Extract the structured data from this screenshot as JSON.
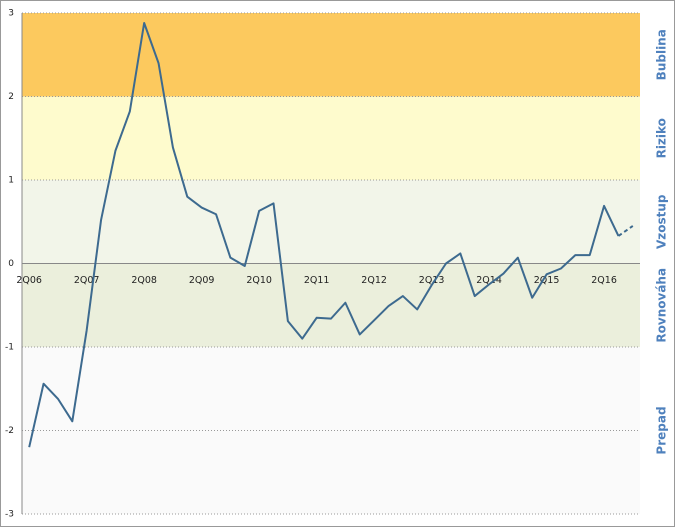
{
  "chart_data": {
    "type": "line",
    "categories": [
      "2Q06",
      null,
      null,
      null,
      "2Q07",
      null,
      null,
      null,
      "2Q08",
      null,
      null,
      null,
      "2Q09",
      null,
      null,
      null,
      "2Q10",
      null,
      null,
      null,
      "2Q11",
      null,
      null,
      null,
      "2Q12",
      null,
      null,
      null,
      "2Q13",
      null,
      null,
      null,
      "2Q14",
      null,
      null,
      null,
      "2Q15",
      null,
      null,
      null,
      "2Q16",
      null,
      null
    ],
    "series": [
      {
        "color": "#3d6a8f",
        "dashed": false,
        "values": [
          -2.2,
          -1.44,
          -1.62,
          -1.89,
          -0.8,
          0.52,
          1.35,
          1.82,
          2.88,
          2.4,
          1.39,
          0.8,
          0.67,
          0.59,
          0.07,
          -0.03,
          0.63,
          0.72,
          -0.69,
          -0.9,
          -0.65,
          -0.66,
          -0.47,
          -0.85,
          -0.68,
          -0.51,
          -0.39,
          -0.55,
          -0.26,
          0.0,
          0.12,
          -0.39,
          -0.25,
          -0.12,
          0.07,
          -0.41,
          -0.13,
          -0.06,
          0.1,
          0.1,
          0.69,
          0.33,
          null
        ]
      },
      {
        "color": "#3d6a8f",
        "dashed": true,
        "values": [
          null,
          null,
          null,
          null,
          null,
          null,
          null,
          null,
          null,
          null,
          null,
          null,
          null,
          null,
          null,
          null,
          null,
          null,
          null,
          null,
          null,
          null,
          null,
          null,
          null,
          null,
          null,
          null,
          null,
          null,
          null,
          null,
          null,
          null,
          null,
          null,
          null,
          null,
          null,
          null,
          null,
          0.33,
          0.45
        ]
      }
    ],
    "bands": [
      {
        "label": "Bublina",
        "from": 2,
        "to": 3,
        "color": "#fcc95e"
      },
      {
        "label": "Riziko",
        "from": 1,
        "to": 2,
        "color": "#fefbcd"
      },
      {
        "label": "Vzostup",
        "from": 0,
        "to": 1,
        "color": "#f2f5e9"
      },
      {
        "label": "Rovnováha",
        "from": -1,
        "to": 0,
        "color": "#ebefdc"
      },
      {
        "label": "Prepad",
        "from": -3,
        "to": -1,
        "color": "#fafafa"
      }
    ],
    "band_label_color": "#4f81bd",
    "ylim": [
      -3,
      3
    ],
    "yticks": [
      -3,
      -2,
      -1,
      0,
      1,
      2,
      3
    ],
    "grid": true
  }
}
